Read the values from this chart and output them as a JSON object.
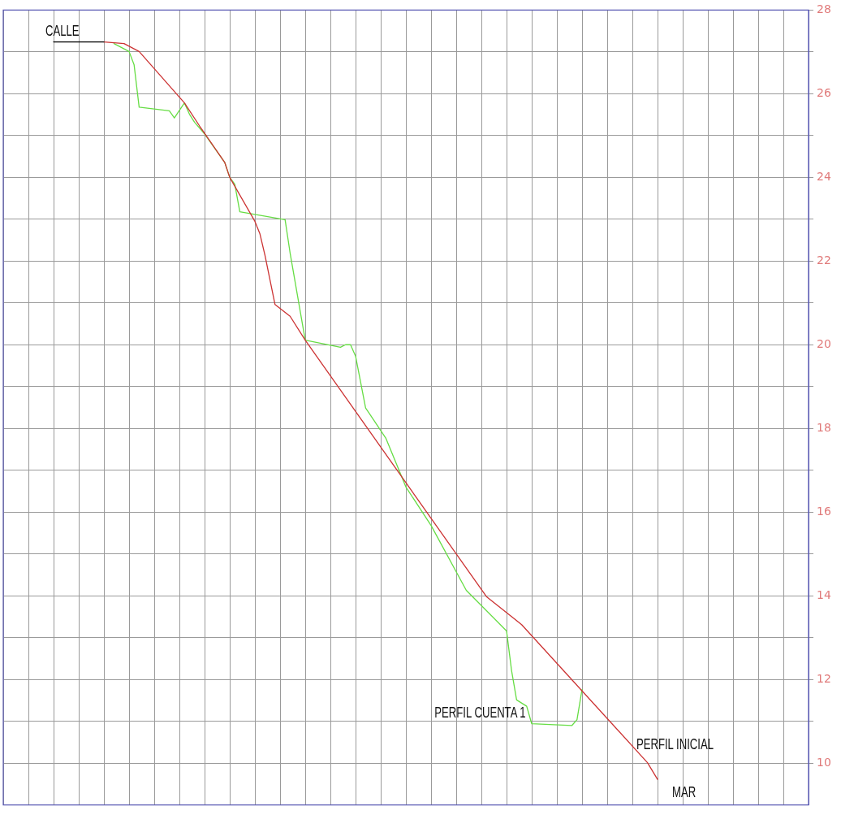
{
  "chart_data": {
    "type": "line",
    "ylim": [
      9,
      28
    ],
    "categories": [
      null,
      null,
      null,
      null,
      null,
      null,
      null,
      null,
      null,
      null,
      null,
      null,
      null,
      null,
      null,
      null,
      null,
      null,
      null,
      null,
      null,
      null,
      null,
      null,
      null,
      null,
      null,
      null,
      null,
      null,
      null,
      null,
      null,
      null,
      null,
      null,
      null,
      null,
      null,
      null,
      null,
      null,
      null,
      null,
      null,
      null,
      null,
      null,
      null,
      null,
      null,
      null,
      null,
      null,
      null,
      null,
      null,
      null,
      null,
      null,
      null,
      null,
      null,
      null,
      null,
      null,
      null,
      null,
      null,
      null,
      null,
      null,
      null,
      null,
      null,
      null,
      null,
      null,
      null,
      null,
      null,
      null,
      null,
      null,
      null,
      null,
      null,
      null,
      null,
      null,
      null,
      null,
      null,
      null,
      null,
      null,
      null,
      null,
      null,
      null,
      null,
      null,
      null,
      null,
      null,
      null,
      null,
      null,
      null,
      null,
      null,
      null,
      null,
      null,
      null,
      null,
      null,
      null,
      null,
      null,
      null,
      null,
      null,
      null,
      null,
      null,
      null,
      null,
      null,
      null,
      null,
      null,
      null,
      null,
      null,
      null,
      null,
      null,
      null,
      null,
      null,
      null,
      null,
      null,
      null,
      null,
      null,
      null,
      null,
      null,
      null,
      null,
      null,
      null,
      null,
      null,
      null,
      null,
      null,
      null,
      null
    ],
    "yticks": [
      10,
      {
        "value": 11,
        "label": null
      },
      12,
      {
        "value": 13,
        "label": null
      },
      14,
      {
        "value": 15,
        "label": null
      },
      16,
      {
        "value": 17,
        "label": null
      },
      18,
      {
        "value": 19,
        "label": null
      },
      20,
      {
        "value": 21,
        "label": null
      },
      22,
      {
        "value": 23,
        "label": null
      },
      24,
      {
        "value": 25,
        "label": null
      },
      26,
      {
        "value": 27,
        "label": null
      },
      28
    ],
    "tick_labels": "y",
    "grid": true,
    "marker": "none",
    "line_style": "solid",
    "series": [
      {
        "color": "#000000",
        "values": [
          null,
          null,
          null,
          null,
          null,
          null,
          null,
          null,
          null,
          null,
          27.24,
          null,
          null,
          null,
          null,
          null,
          null,
          null,
          null,
          null,
          27.24,
          null,
          null,
          null,
          null,
          null,
          null,
          null,
          null,
          null,
          null,
          null,
          null,
          null,
          null,
          null,
          null,
          null,
          null,
          null,
          null,
          null,
          null,
          null,
          null,
          null,
          null,
          null,
          null,
          null,
          null,
          null,
          null,
          null,
          null,
          null,
          null,
          null,
          null,
          null,
          null,
          null,
          null,
          null,
          null,
          null,
          null,
          null,
          null,
          null,
          null,
          null,
          null,
          null,
          null,
          null,
          null,
          null,
          null,
          null,
          null,
          null,
          null,
          null,
          null,
          null,
          null,
          null,
          null,
          null,
          null,
          null,
          null,
          null,
          null,
          null,
          null,
          null,
          null,
          null,
          null,
          null,
          null,
          null,
          null,
          null,
          null,
          null,
          null,
          null,
          null,
          null,
          null,
          null,
          null,
          null,
          null,
          null,
          null,
          null,
          null,
          null,
          null,
          null,
          null,
          null,
          null,
          null,
          null,
          null,
          null,
          null,
          null,
          null,
          null,
          null,
          null,
          null,
          null,
          null,
          null,
          null,
          null,
          null,
          null,
          null,
          null,
          null,
          null,
          null,
          null,
          null,
          null,
          null,
          null,
          null,
          null,
          null,
          null,
          null,
          null
        ]
      },
      {
        "name": "PERFIL INICIAL",
        "color": "#cc3333",
        "values": [
          null,
          null,
          null,
          null,
          null,
          null,
          null,
          null,
          null,
          null,
          null,
          null,
          null,
          null,
          null,
          null,
          null,
          null,
          null,
          null,
          27.24,
          null,
          null,
          null,
          27.2,
          null,
          null,
          27.01,
          null,
          null,
          null,
          null,
          null,
          null,
          null,
          null,
          25.78,
          null,
          null,
          25.23,
          null,
          null,
          null,
          null,
          24.36,
          24.0,
          null,
          null,
          null,
          null,
          22.95,
          22.65,
          22.14,
          null,
          20.96,
          null,
          null,
          20.68,
          null,
          null,
          20.11,
          null,
          null,
          null,
          null,
          null,
          null,
          null,
          null,
          null,
          null,
          null,
          null,
          null,
          null,
          null,
          null,
          null,
          null,
          null,
          null,
          null,
          null,
          null,
          null,
          null,
          null,
          null,
          null,
          null,
          15.0,
          null,
          null,
          null,
          null,
          null,
          13.98,
          null,
          null,
          null,
          null,
          null,
          null,
          13.31,
          null,
          null,
          null,
          null,
          null,
          null,
          null,
          null,
          null,
          null,
          null,
          null,
          null,
          null,
          null,
          null,
          null,
          null,
          null,
          null,
          null,
          null,
          null,
          null,
          10.01,
          null,
          9.61,
          null,
          null,
          null,
          null,
          null,
          null,
          null,
          null,
          null,
          null,
          null,
          null,
          null,
          null,
          null,
          null,
          null,
          null,
          null,
          null,
          null,
          null,
          null,
          null,
          null,
          null,
          null,
          null,
          null,
          null
        ]
      },
      {
        "name": "PERFIL CUENTA 1",
        "color": "#66dd44",
        "values": [
          null,
          null,
          null,
          null,
          null,
          null,
          null,
          null,
          null,
          null,
          null,
          null,
          null,
          null,
          null,
          null,
          null,
          null,
          null,
          null,
          null,
          null,
          27.2,
          null,
          null,
          27.01,
          26.69,
          25.68,
          null,
          null,
          null,
          null,
          null,
          25.59,
          25.42,
          null,
          25.78,
          25.51,
          25.32,
          null,
          25.04,
          null,
          null,
          null,
          24.36,
          24.0,
          23.84,
          23.18,
          null,
          null,
          null,
          null,
          null,
          null,
          null,
          null,
          22.99,
          22.19,
          null,
          null,
          20.11,
          null,
          null,
          null,
          null,
          null,
          null,
          19.94,
          20.0,
          20.0,
          19.73,
          null,
          18.49,
          null,
          null,
          null,
          17.77,
          null,
          null,
          null,
          16.6,
          null,
          null,
          null,
          null,
          15.68,
          null,
          null,
          null,
          null,
          null,
          null,
          14.13,
          null,
          null,
          null,
          null,
          null,
          null,
          null,
          13.16,
          12.21,
          11.51,
          null,
          11.36,
          10.94,
          null,
          null,
          null,
          null,
          null,
          null,
          null,
          10.9,
          11.04,
          11.76,
          null,
          null,
          null,
          null,
          null,
          null,
          null,
          null,
          null,
          null,
          null,
          null,
          null,
          null,
          null,
          null,
          null,
          null,
          null,
          null,
          null,
          null,
          null,
          null,
          null,
          null,
          null,
          null,
          null,
          null,
          null,
          null,
          null,
          null,
          null,
          null,
          null,
          null,
          null,
          null,
          null,
          null,
          null,
          null,
          null
        ]
      }
    ],
    "annotations": [
      "CALLE",
      "MAR"
    ]
  }
}
